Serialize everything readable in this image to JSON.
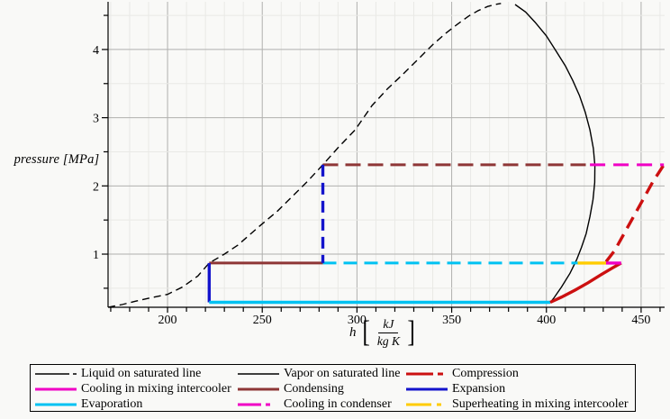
{
  "colors": {
    "background": "#f9f9f7",
    "grid_minor": "#e9e9e6",
    "grid_major": "#b0b0ae",
    "axis": "#000000",
    "saturation_line": "#000000",
    "compression": "#cc1010",
    "condensing": "#8e3636",
    "expansion": "#1414cc",
    "evaporation": "#00c2f2",
    "cooling": "#f000c4",
    "superheating": "#ffcc00"
  },
  "axes": {
    "x": {
      "symbol": "h",
      "bracket_open": "[",
      "bracket_close": "]",
      "unit_numerator": "kJ",
      "unit_denominator": "kg K",
      "min": 168.6,
      "max": 462.4,
      "major_ticks": [
        200,
        250,
        300,
        350,
        400,
        450
      ],
      "minor_start": 170,
      "minor_step": 10,
      "minor_end": 460
    },
    "y": {
      "label": "pressure [MPa]",
      "min": 0.221,
      "max": 4.699,
      "major_ticks": [
        1,
        2,
        3,
        4
      ],
      "minor_start": 0.5,
      "minor_step": 0.5,
      "minor_end": 4.5
    }
  },
  "chart_data": {
    "type": "line",
    "title": "",
    "xlabel": "h [kJ/(kg K)]",
    "ylabel": "pressure [MPa]",
    "xlim": [
      168.6,
      462.4
    ],
    "ylim": [
      0.221,
      4.699
    ],
    "grid": true,
    "legend_position": "bottom",
    "cycle_pressures_MPa": {
      "evaporation": 0.29,
      "intermediate_intercooler": 0.87,
      "condensation": 2.31
    },
    "series": [
      {
        "id": "liquid-saturated-line",
        "label": "Liquid on saturated line",
        "color": "#000000",
        "width": 1.4,
        "dash": "8,5",
        "points": [
          [
            168.6,
            0.221
          ],
          [
            176,
            0.26
          ],
          [
            183,
            0.31
          ],
          [
            191,
            0.36
          ],
          [
            200,
            0.41
          ],
          [
            208,
            0.52
          ],
          [
            216,
            0.68
          ],
          [
            222,
            0.87
          ],
          [
            230,
            1.0
          ],
          [
            237,
            1.13
          ],
          [
            249,
            1.42
          ],
          [
            258,
            1.63
          ],
          [
            266,
            1.85
          ],
          [
            274,
            2.07
          ],
          [
            282,
            2.31
          ],
          [
            290,
            2.56
          ],
          [
            299,
            2.82
          ],
          [
            308,
            3.18
          ],
          [
            316,
            3.42
          ],
          [
            324,
            3.63
          ],
          [
            332,
            3.85
          ],
          [
            340,
            4.07
          ],
          [
            347,
            4.24
          ],
          [
            353,
            4.37
          ],
          [
            359,
            4.49
          ],
          [
            364,
            4.57
          ],
          [
            369,
            4.63
          ],
          [
            373,
            4.66
          ],
          [
            376,
            4.675
          ]
        ]
      },
      {
        "id": "vapor-saturated-line",
        "label": "Vapor on saturated line",
        "color": "#000000",
        "width": 1.4,
        "dash": null,
        "points": [
          [
            383.5,
            4.66
          ],
          [
            389,
            4.55
          ],
          [
            394,
            4.4
          ],
          [
            400,
            4.2
          ],
          [
            405,
            3.98
          ],
          [
            410,
            3.76
          ],
          [
            414,
            3.54
          ],
          [
            417.5,
            3.32
          ],
          [
            420.5,
            3.08
          ],
          [
            423,
            2.82
          ],
          [
            424.8,
            2.55
          ],
          [
            425.6,
            2.3
          ],
          [
            425.5,
            2.05
          ],
          [
            424.6,
            1.8
          ],
          [
            423,
            1.55
          ],
          [
            421,
            1.3
          ],
          [
            418.5,
            1.1
          ],
          [
            416,
            0.92
          ],
          [
            412.5,
            0.72
          ],
          [
            408,
            0.52
          ],
          [
            404,
            0.36
          ],
          [
            402,
            0.29
          ]
        ]
      },
      {
        "id": "condensing",
        "label": "Condensing",
        "color": "#8e3636",
        "width": 3,
        "dash": "17,8",
        "points": [
          [
            282,
            2.31
          ],
          [
            423,
            2.31
          ]
        ]
      },
      {
        "id": "condensing-in-intercooler",
        "label": "Condensing",
        "color": "#8e3636",
        "width": 3,
        "dash": null,
        "points": [
          [
            222,
            0.87
          ],
          [
            282,
            0.87
          ]
        ]
      },
      {
        "id": "evaporation-in-intercooler",
        "label": "Evaporation",
        "color": "#00c2f2",
        "width": 3,
        "dash": "15,8",
        "points": [
          [
            282,
            0.87
          ],
          [
            416.5,
            0.87
          ]
        ]
      },
      {
        "id": "expansion-1",
        "label": "Expansion",
        "color": "#1414cc",
        "width": 3.4,
        "dash": "13,7",
        "points": [
          [
            282,
            2.31
          ],
          [
            282,
            0.87
          ]
        ]
      },
      {
        "id": "expansion-2",
        "label": "Expansion",
        "color": "#1414cc",
        "width": 3.4,
        "dash": null,
        "points": [
          [
            222,
            0.87
          ],
          [
            222,
            0.293
          ]
        ]
      },
      {
        "id": "evaporation",
        "label": "Evaporation",
        "color": "#00c2f2",
        "width": 3.4,
        "dash": null,
        "points": [
          [
            222,
            0.293
          ],
          [
            402,
            0.293
          ]
        ]
      },
      {
        "id": "compression-stage-1",
        "label": "Compression",
        "color": "#cc1010",
        "width": 3.4,
        "dash": null,
        "points": [
          [
            402,
            0.293
          ],
          [
            408,
            0.37
          ],
          [
            415,
            0.47
          ],
          [
            422,
            0.58
          ],
          [
            429,
            0.7
          ],
          [
            435,
            0.8
          ],
          [
            439.5,
            0.87
          ]
        ]
      },
      {
        "id": "compression-stage-2",
        "label": "Compression",
        "color": "#cc1010",
        "width": 3.4,
        "dash": "14,8",
        "points": [
          [
            431.5,
            0.89
          ],
          [
            436,
            1.05
          ],
          [
            441,
            1.3
          ],
          [
            446,
            1.55
          ],
          [
            451,
            1.8
          ],
          [
            456,
            2.05
          ],
          [
            462,
            2.31
          ]
        ]
      },
      {
        "id": "cooling-in-condenser",
        "label": "Cooling in condenser",
        "color": "#f000c4",
        "width": 3,
        "dash": "17,9",
        "points": [
          [
            423,
            2.31
          ],
          [
            462,
            2.31
          ]
        ]
      },
      {
        "id": "superheating-in-mixing-intercooler",
        "label": "Superheating in mixing intercooler",
        "color": "#ffcc00",
        "width": 3.4,
        "dash": null,
        "points": [
          [
            416.5,
            0.87
          ],
          [
            431.5,
            0.87
          ]
        ]
      },
      {
        "id": "cooling-in-mixing-intercooler",
        "label": "Cooling in mixing intercooler",
        "color": "#f000c4",
        "width": 3.4,
        "dash": null,
        "points": [
          [
            431.5,
            0.87
          ],
          [
            439.5,
            0.87
          ]
        ]
      }
    ],
    "legend": {
      "columns": [
        {
          "entries": [
            {
              "label": "Liquid on saturated line",
              "color": "#000000",
              "width": 1.6,
              "dash": "38,4,5,200"
            },
            {
              "label": "Cooling in mixing intercooler",
              "color": "#f000c4",
              "width": 3,
              "dash": null
            },
            {
              "label": "Evaporation",
              "color": "#00c2f2",
              "width": 3,
              "dash": null
            }
          ]
        },
        {
          "entries": [
            {
              "label": "Vapor on saturated line",
              "color": "#000000",
              "width": 1.6,
              "dash": null
            },
            {
              "label": "Condensing",
              "color": "#8e3636",
              "width": 3,
              "dash": null
            },
            {
              "label": "Cooling in condenser",
              "color": "#f000c4",
              "width": 3,
              "dash": "26,5,5,200"
            }
          ]
        },
        {
          "entries": [
            {
              "label": "Compression",
              "color": "#cc1010",
              "width": 3,
              "dash": "30,5,6,200"
            },
            {
              "label": "Expansion",
              "color": "#1414cc",
              "width": 3,
              "dash": null
            },
            {
              "label": "Superheating in mixing intercooler",
              "color": "#ffcc00",
              "width": 3,
              "dash": "28,6,5,200"
            }
          ]
        }
      ]
    }
  }
}
